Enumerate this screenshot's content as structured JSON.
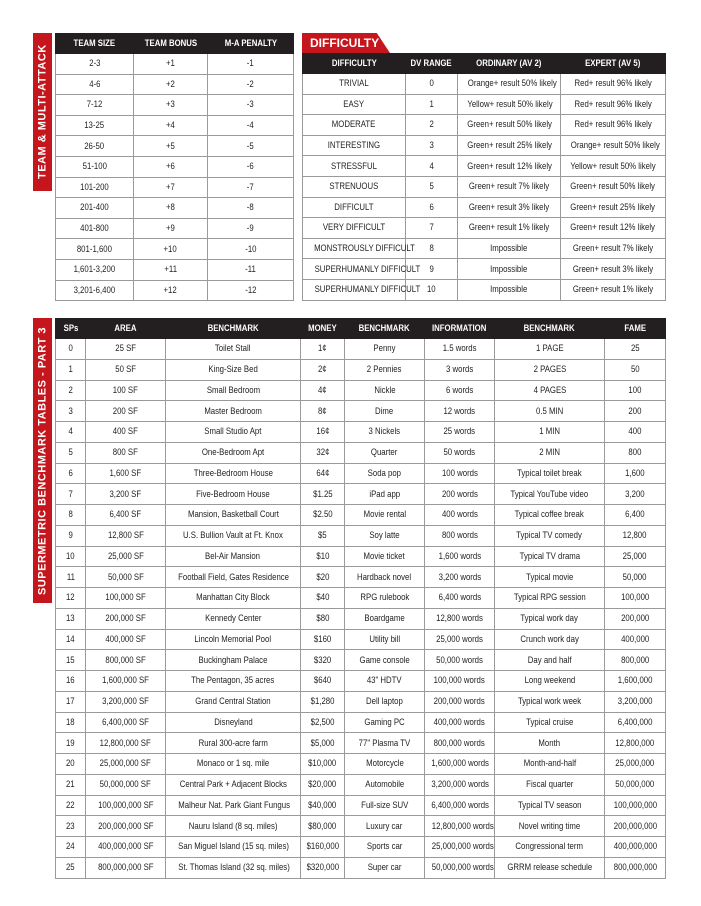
{
  "team_table": {
    "label": "TEAM & MULTI-ATTACK",
    "headers": [
      "TEAM SIZE",
      "TEAM BONUS",
      "M-A PENALTY"
    ],
    "rows": [
      [
        "2-3",
        "+1",
        "-1"
      ],
      [
        "4-6",
        "+2",
        "-2"
      ],
      [
        "7-12",
        "+3",
        "-3"
      ],
      [
        "13-25",
        "+4",
        "-4"
      ],
      [
        "26-50",
        "+5",
        "-5"
      ],
      [
        "51-100",
        "+6",
        "-6"
      ],
      [
        "101-200",
        "+7",
        "-7"
      ],
      [
        "201-400",
        "+8",
        "-8"
      ],
      [
        "401-800",
        "+9",
        "-9"
      ],
      [
        "801-1,600",
        "+10",
        "-10"
      ],
      [
        "1,601-3,200",
        "+11",
        "-11"
      ],
      [
        "3,201-6,400",
        "+12",
        "-12"
      ]
    ]
  },
  "difficulty_table": {
    "title": "DIFFICULTY",
    "headers": [
      "DIFFICULTY",
      "DV RANGE",
      "ORDINARY (AV 2)",
      "EXPERT (AV 5)"
    ],
    "rows": [
      [
        "TRIVIAL",
        "0",
        "Orange+ result 50% likely",
        "Red+ result 96% likely"
      ],
      [
        "EASY",
        "1",
        "Yellow+ result 50% likely",
        "Red+ result 96% likely"
      ],
      [
        "MODERATE",
        "2",
        "Green+ result 50% likely",
        "Red+ result 96% likely"
      ],
      [
        "INTERESTING",
        "3",
        "Green+ result 25% likely",
        "Orange+ result 50% likely"
      ],
      [
        "STRESSFUL",
        "4",
        "Green+ result 12% likely",
        "Yellow+ result 50% likely"
      ],
      [
        "STRENUOUS",
        "5",
        "Green+ result 7% likely",
        "Green+ result 50% likely"
      ],
      [
        "DIFFICULT",
        "6",
        "Green+ result 3% likely",
        "Green+ result 25% likely"
      ],
      [
        "VERY DIFFICULT",
        "7",
        "Green+ result 1% likely",
        "Green+ result 12% likely"
      ],
      [
        "MONSTROUSLY DIFFICULT",
        "8",
        "Impossible",
        "Green+ result 7% likely"
      ],
      [
        "SUPERHUMANLY DIFFICULT",
        "9",
        "Impossible",
        "Green+ result 3% likely"
      ],
      [
        "SUPERHUMANLY DIFFICULT",
        "10",
        "Impossible",
        "Green+ result 1% likely"
      ]
    ]
  },
  "benchmark_table": {
    "label": "SUPERMETRIC BENCHMARK TABLES - PART 3",
    "headers": [
      "SPs",
      "AREA",
      "BENCHMARK",
      "MONEY",
      "BENCHMARK",
      "INFORMATION",
      "BENCHMARK",
      "FAME"
    ],
    "rows": [
      [
        "0",
        "25 SF",
        "Toilet Stall",
        "1¢",
        "Penny",
        "1.5 words",
        "1 PAGE",
        "25"
      ],
      [
        "1",
        "50 SF",
        "King-Size Bed",
        "2¢",
        "2 Pennies",
        "3 words",
        "2 PAGES",
        "50"
      ],
      [
        "2",
        "100 SF",
        "Small Bedroom",
        "4¢",
        "Nickle",
        "6 words",
        "4 PAGES",
        "100"
      ],
      [
        "3",
        "200 SF",
        "Master Bedroom",
        "8¢",
        "Dime",
        "12 words",
        "0.5 MIN",
        "200"
      ],
      [
        "4",
        "400 SF",
        "Small Studio Apt",
        "16¢",
        "3 Nickels",
        "25 words",
        "1 MIN",
        "400"
      ],
      [
        "5",
        "800 SF",
        "One-Bedroom Apt",
        "32¢",
        "Quarter",
        "50 words",
        "2 MIN",
        "800"
      ],
      [
        "6",
        "1,600 SF",
        "Three-Bedroom House",
        "64¢",
        "Soda pop",
        "100 words",
        "Typical toilet break",
        "1,600"
      ],
      [
        "7",
        "3,200 SF",
        "Five-Bedroom House",
        "$1.25",
        "iPad app",
        "200 words",
        "Typical YouTube video",
        "3,200"
      ],
      [
        "8",
        "6,400 SF",
        "Mansion, Basketball Court",
        "$2.50",
        "Movie rental",
        "400 words",
        "Typical coffee break",
        "6,400"
      ],
      [
        "9",
        "12,800 SF",
        "U.S. Bullion Vault at Ft. Knox",
        "$5",
        "Soy latte",
        "800 words",
        "Typical TV comedy",
        "12,800"
      ],
      [
        "10",
        "25,000 SF",
        "Bel-Air Mansion",
        "$10",
        "Movie ticket",
        "1,600 words",
        "Typical TV drama",
        "25,000"
      ],
      [
        "11",
        "50,000 SF",
        "Football Field, Gates Residence",
        "$20",
        "Hardback novel",
        "3,200 words",
        "Typical movie",
        "50,000"
      ],
      [
        "12",
        "100,000 SF",
        "Manhattan City Block",
        "$40",
        "RPG rulebook",
        "6,400 words",
        "Typical RPG session",
        "100,000"
      ],
      [
        "13",
        "200,000 SF",
        "Kennedy Center",
        "$80",
        "Boardgame",
        "12,800 words",
        "Typical work day",
        "200,000"
      ],
      [
        "14",
        "400,000 SF",
        "Lincoln Memorial Pool",
        "$160",
        "Utility bill",
        "25,000 words",
        "Crunch work day",
        "400,000"
      ],
      [
        "15",
        "800,000  SF",
        "Buckingham Palace",
        "$320",
        "Game console",
        "50,000 words",
        "Day and half",
        "800,000"
      ],
      [
        "16",
        "1,600,000 SF",
        "The Pentagon, 35 acres",
        "$640",
        "43\" HDTV",
        "100,000 words",
        "Long weekend",
        "1,600,000"
      ],
      [
        "17",
        "3,200,000 SF",
        "Grand Central Station",
        "$1,280",
        "Dell laptop",
        "200,000 words",
        "Typical work week",
        "3,200,000"
      ],
      [
        "18",
        "6,400,000 SF",
        "Disneyland",
        "$2,500",
        "Gaming PC",
        "400,000 words",
        "Typical cruise",
        "6,400,000"
      ],
      [
        "19",
        "12,800,000 SF",
        "Rural 300-acre farm",
        "$5,000",
        "77\" Plasma TV",
        "800,000 words",
        "Month",
        "12,800,000"
      ],
      [
        "20",
        "25,000,000 SF",
        "Monaco or 1 sq. mile",
        "$10,000",
        "Motorcycle",
        "1,600,000 words",
        "Month-and-half",
        "25,000,000"
      ],
      [
        "21",
        "50,000,000 SF",
        "Central Park + Adjacent Blocks",
        "$20,000",
        "Automobile",
        "3,200,000 words",
        "Fiscal quarter",
        "50,000,000"
      ],
      [
        "22",
        "100,000,000 SF",
        "Malheur Nat. Park Giant Fungus",
        "$40,000",
        "Full-size SUV",
        "6,400,000 words",
        "Typical TV season",
        "100,000,000"
      ],
      [
        "23",
        "200,000,000 SF",
        "Nauru Island (8 sq. miles)",
        "$80,000",
        "Luxury car",
        "12,800,000 words",
        "Novel writing time",
        "200,000,000"
      ],
      [
        "24",
        "400,000,000 SF",
        "San Miguel Island (15 sq. miles)",
        "$160,000",
        "Sports car",
        "25,000,000 words",
        "Congressional term",
        "400,000,000"
      ],
      [
        "25",
        "800,000,000 SF",
        "St. Thomas Island (32 sq. miles)",
        "$320,000",
        "Super car",
        "50,000,000 words",
        "GRRM release schedule",
        "800,000,000"
      ]
    ]
  }
}
